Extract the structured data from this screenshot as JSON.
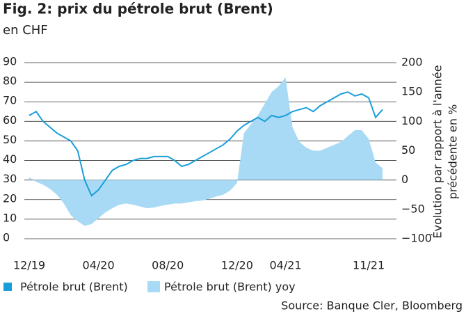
{
  "chart_data": {
    "type": "line-area",
    "title": "Fig. 2: prix du pétrole brut (Brent)",
    "subtitle": "en CHF",
    "y2label": [
      "Évolution par rapport à l'année",
      "précédente en %"
    ],
    "source": "Source: Banque Cler, Bloomberg",
    "categories": [
      "12/19",
      null,
      null,
      null,
      null,
      null,
      null,
      null,
      null,
      null,
      "04/20",
      null,
      null,
      null,
      null,
      null,
      null,
      null,
      null,
      null,
      "08/20",
      null,
      null,
      null,
      null,
      null,
      null,
      null,
      null,
      null,
      "12/20",
      null,
      null,
      null,
      null,
      null,
      null,
      "04/21",
      null,
      null,
      null,
      null,
      null,
      null,
      null,
      null,
      null,
      null,
      null,
      "11/21",
      null,
      null
    ],
    "ylim": [
      0,
      90
    ],
    "yticks": [
      0,
      10,
      20,
      30,
      40,
      50,
      60,
      70,
      80,
      90
    ],
    "y2lim": [
      -100,
      200
    ],
    "y2ticks": [
      {
        "value": -100,
        "label": "−100"
      },
      {
        "value": -50,
        "label": "−50"
      },
      0,
      50,
      100,
      150,
      200
    ],
    "grid": true,
    "series": [
      {
        "name": "Pétrole brut (Brent)",
        "kind": "line",
        "color": "#1a9ed9",
        "values": [
          63,
          65,
          60,
          57,
          54,
          52,
          50,
          45,
          30,
          22,
          25,
          30,
          35,
          37,
          38,
          40,
          41,
          41,
          42,
          42,
          42,
          40,
          37,
          38,
          40,
          42,
          44,
          46,
          48,
          51,
          55,
          58,
          60,
          62,
          60,
          63,
          62,
          63,
          65,
          66,
          67,
          65,
          68,
          70,
          72,
          74,
          75,
          73,
          74,
          72,
          62,
          66
        ]
      },
      {
        "name": "Pétrole brut (Brent) yoy",
        "kind": "area",
        "color": "#a8daf5",
        "axis": "y2",
        "values": [
          5,
          -3,
          -8,
          -15,
          -25,
          -40,
          -60,
          -70,
          -78,
          -75,
          -65,
          -55,
          -48,
          -42,
          -40,
          -42,
          -45,
          -48,
          -47,
          -44,
          -42,
          -40,
          -40,
          -38,
          -36,
          -35,
          -32,
          -28,
          -25,
          -18,
          -5,
          80,
          95,
          110,
          130,
          150,
          160,
          175,
          90,
          65,
          55,
          50,
          50,
          55,
          60,
          65,
          75,
          85,
          85,
          70,
          30,
          20
        ]
      }
    ]
  }
}
